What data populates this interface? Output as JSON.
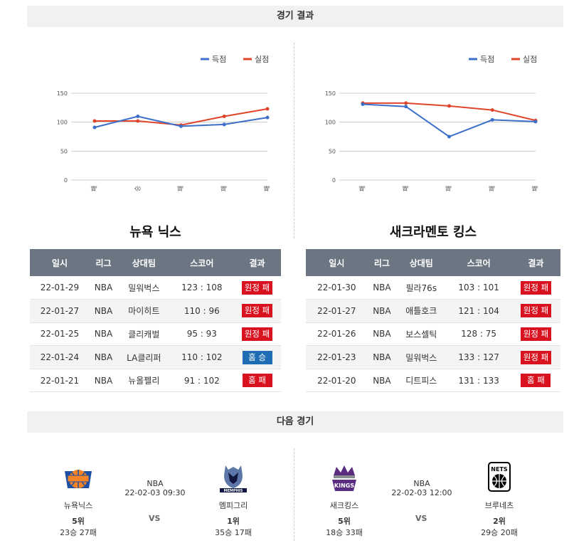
{
  "sections": {
    "results_title": "경기 결과",
    "next_title": "다음 경기"
  },
  "legend": {
    "scored": "득점",
    "conceded": "실점"
  },
  "colors": {
    "scored": "#3b6fc9",
    "conceded": "#e0452b",
    "win_badge": "#1f6db5",
    "loss_badge": "#d9121f",
    "table_header": "#6b7682"
  },
  "chart_data": [
    {
      "type": "line",
      "categories": [
        "패",
        "승",
        "패",
        "패",
        "패"
      ],
      "series": [
        {
          "name": "득점",
          "values": [
            91,
            110,
            93,
            96,
            108
          ]
        },
        {
          "name": "실점",
          "values": [
            102,
            102,
            95,
            110,
            123
          ]
        }
      ],
      "yticks": [
        0,
        50,
        100,
        150
      ],
      "ylim": [
        0,
        150
      ],
      "grid": true,
      "legend_position": "top-right"
    },
    {
      "type": "line",
      "categories": [
        "패",
        "패",
        "패",
        "패",
        "패"
      ],
      "series": [
        {
          "name": "득점",
          "values": [
            131,
            127,
            75,
            104,
            101
          ]
        },
        {
          "name": "실점",
          "values": [
            133,
            133,
            128,
            121,
            103
          ]
        }
      ],
      "yticks": [
        0,
        50,
        100,
        150
      ],
      "ylim": [
        0,
        150
      ],
      "grid": true,
      "legend_position": "top-right"
    }
  ],
  "teams": [
    {
      "name": "뉴욕 닉스",
      "headers": [
        "일시",
        "리그",
        "상대팀",
        "스코어",
        "결과"
      ],
      "games": [
        {
          "date": "22-01-29",
          "league": "NBA",
          "opponent": "밀워벅스",
          "score": "123 : 108",
          "result": "원정 패"
        },
        {
          "date": "22-01-27",
          "league": "NBA",
          "opponent": "마이히트",
          "score": "110 : 96",
          "result": "원정 패"
        },
        {
          "date": "22-01-25",
          "league": "NBA",
          "opponent": "클리캐벌",
          "score": "95 : 93",
          "result": "원정 패"
        },
        {
          "date": "22-01-24",
          "league": "NBA",
          "opponent": "LA클리퍼",
          "score": "110 : 102",
          "result": "홈 승"
        },
        {
          "date": "22-01-21",
          "league": "NBA",
          "opponent": "뉴올펠리",
          "score": "91 : 102",
          "result": "홈 패"
        }
      ]
    },
    {
      "name": "새크라멘토 킹스",
      "headers": [
        "일시",
        "리그",
        "상대팀",
        "스코어",
        "결과"
      ],
      "games": [
        {
          "date": "22-01-30",
          "league": "NBA",
          "opponent": "필라76s",
          "score": "103 : 101",
          "result": "원정 패"
        },
        {
          "date": "22-01-27",
          "league": "NBA",
          "opponent": "애틀호크",
          "score": "121 : 104",
          "result": "원정 패"
        },
        {
          "date": "22-01-26",
          "league": "NBA",
          "opponent": "보스셀틱",
          "score": "128 : 75",
          "result": "원정 패"
        },
        {
          "date": "22-01-23",
          "league": "NBA",
          "opponent": "밀워벅스",
          "score": "133 : 127",
          "result": "원정 패"
        },
        {
          "date": "22-01-20",
          "league": "NBA",
          "opponent": "디트피스",
          "score": "131 : 133",
          "result": "홈 패"
        }
      ]
    }
  ],
  "next_games": [
    {
      "league": "NBA",
      "datetime": "22-02-03 09:30",
      "vs": "VS",
      "home": {
        "name": "뉴욕닉스",
        "rank": "5위",
        "record": "23승 27패",
        "logo": "knicks-logo"
      },
      "away": {
        "name": "멤피그리",
        "rank": "1위",
        "record": "35승 17패",
        "logo": "grizzlies-logo",
        "logo_text": "MEMPHIS"
      }
    },
    {
      "league": "NBA",
      "datetime": "22-02-03 12:00",
      "vs": "VS",
      "home": {
        "name": "새크킹스",
        "rank": "5위",
        "record": "18승 33패",
        "logo": "kings-logo",
        "logo_text": "KINGS"
      },
      "away": {
        "name": "브루네츠",
        "rank": "2위",
        "record": "29승 20패",
        "logo": "nets-logo",
        "logo_text": "NETS"
      }
    }
  ]
}
